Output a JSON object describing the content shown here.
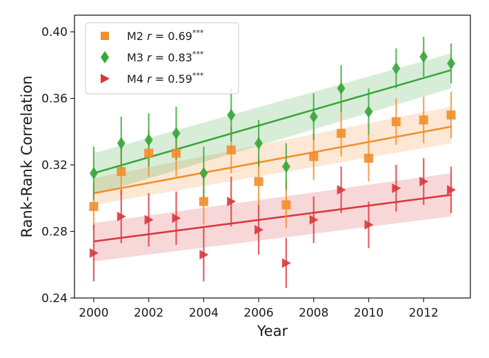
{
  "chart_data": {
    "type": "scatter",
    "title": "",
    "xlabel": "Year",
    "ylabel": "Rank-Rank Correlation",
    "xlim": [
      1999.3,
      2013.7
    ],
    "ylim": [
      0.24,
      0.41
    ],
    "xticks": [
      2000,
      2002,
      2004,
      2006,
      2008,
      2010,
      2012
    ],
    "xtick_labels": [
      "2000",
      "2002",
      "2004",
      "2006",
      "2008",
      "2010",
      "2012"
    ],
    "yticks": [
      0.24,
      0.28,
      0.32,
      0.36,
      0.4
    ],
    "ytick_labels": [
      "0.24",
      "0.28",
      "0.32",
      "0.36",
      "0.40"
    ],
    "x": [
      2000,
      2001,
      2002,
      2003,
      2004,
      2005,
      2006,
      2007,
      2008,
      2009,
      2010,
      2011,
      2012,
      2013
    ],
    "legend_position": "top-left",
    "series": [
      {
        "name": "M2",
        "label_prefix": "M2 ",
        "label_r": "r",
        "label_value": " = 0.69",
        "label_sig": "***",
        "marker": "square",
        "color": "#f28e2b",
        "values": [
          0.295,
          0.316,
          0.327,
          0.327,
          0.298,
          0.329,
          0.31,
          0.296,
          0.325,
          0.339,
          0.324,
          0.346,
          0.347,
          0.35
        ],
        "err": [
          0.014,
          0.014,
          0.014,
          0.014,
          0.014,
          0.014,
          0.014,
          0.014,
          0.014,
          0.014,
          0.014,
          0.014,
          0.014,
          0.014
        ],
        "fit": [
          0.303,
          0.343
        ],
        "band_start": [
          0.296,
          0.312
        ],
        "band_end": [
          0.333,
          0.355
        ]
      },
      {
        "name": "M3",
        "label_prefix": "M3 ",
        "label_r": "r",
        "label_value": " = 0.83",
        "label_sig": "***",
        "marker": "diamond",
        "color": "#3aa63a",
        "values": [
          0.315,
          0.333,
          0.335,
          0.339,
          0.315,
          0.35,
          0.333,
          0.319,
          0.349,
          0.366,
          0.352,
          0.378,
          0.385,
          0.381
        ],
        "err": [
          0.016,
          0.016,
          0.016,
          0.016,
          0.016,
          0.016,
          0.014,
          0.014,
          0.014,
          0.014,
          0.014,
          0.012,
          0.012,
          0.012
        ],
        "fit": [
          0.315,
          0.377
        ],
        "band_start": [
          0.302,
          0.327
        ],
        "band_end": [
          0.366,
          0.387
        ]
      },
      {
        "name": "M4",
        "label_prefix": "M4 ",
        "label_r": "r",
        "label_value": " = 0.59",
        "label_sig": "***",
        "marker": "triangle-right",
        "color": "#d8373c",
        "values": [
          0.267,
          0.289,
          0.287,
          0.288,
          0.266,
          0.298,
          0.281,
          0.261,
          0.287,
          0.305,
          0.284,
          0.306,
          0.31,
          0.305
        ],
        "err": [
          0.017,
          0.016,
          0.016,
          0.016,
          0.016,
          0.015,
          0.015,
          0.015,
          0.014,
          0.014,
          0.014,
          0.014,
          0.014,
          0.014
        ],
        "fit": [
          0.274,
          0.302
        ],
        "band_start": [
          0.262,
          0.285
        ],
        "band_end": [
          0.289,
          0.315
        ]
      }
    ]
  }
}
